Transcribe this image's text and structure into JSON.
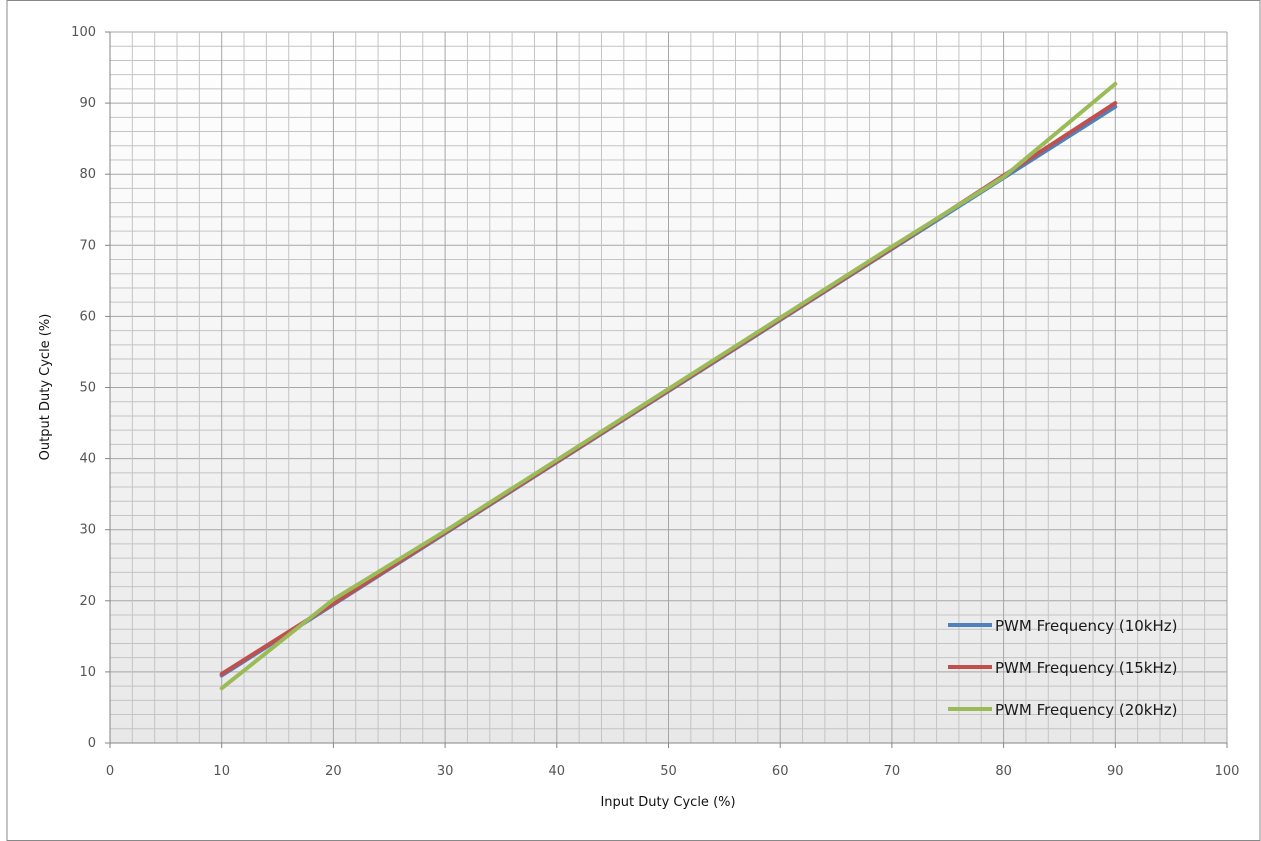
{
  "chart_data": {
    "type": "line",
    "title": "",
    "xlabel": "Input Duty Cycle (%)",
    "ylabel": "Output Duty Cycle (%)",
    "xlim": [
      0,
      100
    ],
    "ylim": [
      0,
      100
    ],
    "x_ticks": [
      "0",
      "10",
      "20",
      "30",
      "40",
      "50",
      "60",
      "70",
      "80",
      "90",
      "100"
    ],
    "y_ticks": [
      "0",
      "10",
      "20",
      "30",
      "40",
      "50",
      "60",
      "70",
      "80",
      "90",
      "100"
    ],
    "grid": true,
    "legend_position": "bottom-right",
    "x": [
      10,
      20,
      30,
      40,
      50,
      60,
      70,
      80,
      90
    ],
    "series": [
      {
        "name": "PWM Frequency (10kHz)",
        "color": "#4f81bd",
        "values": [
          9.5,
          19.5,
          29.5,
          39.5,
          49.5,
          59.5,
          69.5,
          79.5,
          89.5
        ]
      },
      {
        "name": "PWM Frequency (15kHz)",
        "color": "#c0504d",
        "values": [
          9.7,
          19.6,
          29.6,
          39.6,
          49.6,
          59.6,
          69.6,
          79.8,
          90.0
        ]
      },
      {
        "name": "PWM Frequency (20kHz)",
        "color": "#9bbb59",
        "values": [
          7.7,
          20.2,
          29.8,
          39.8,
          49.8,
          59.8,
          69.8,
          79.6,
          92.7
        ]
      }
    ]
  }
}
